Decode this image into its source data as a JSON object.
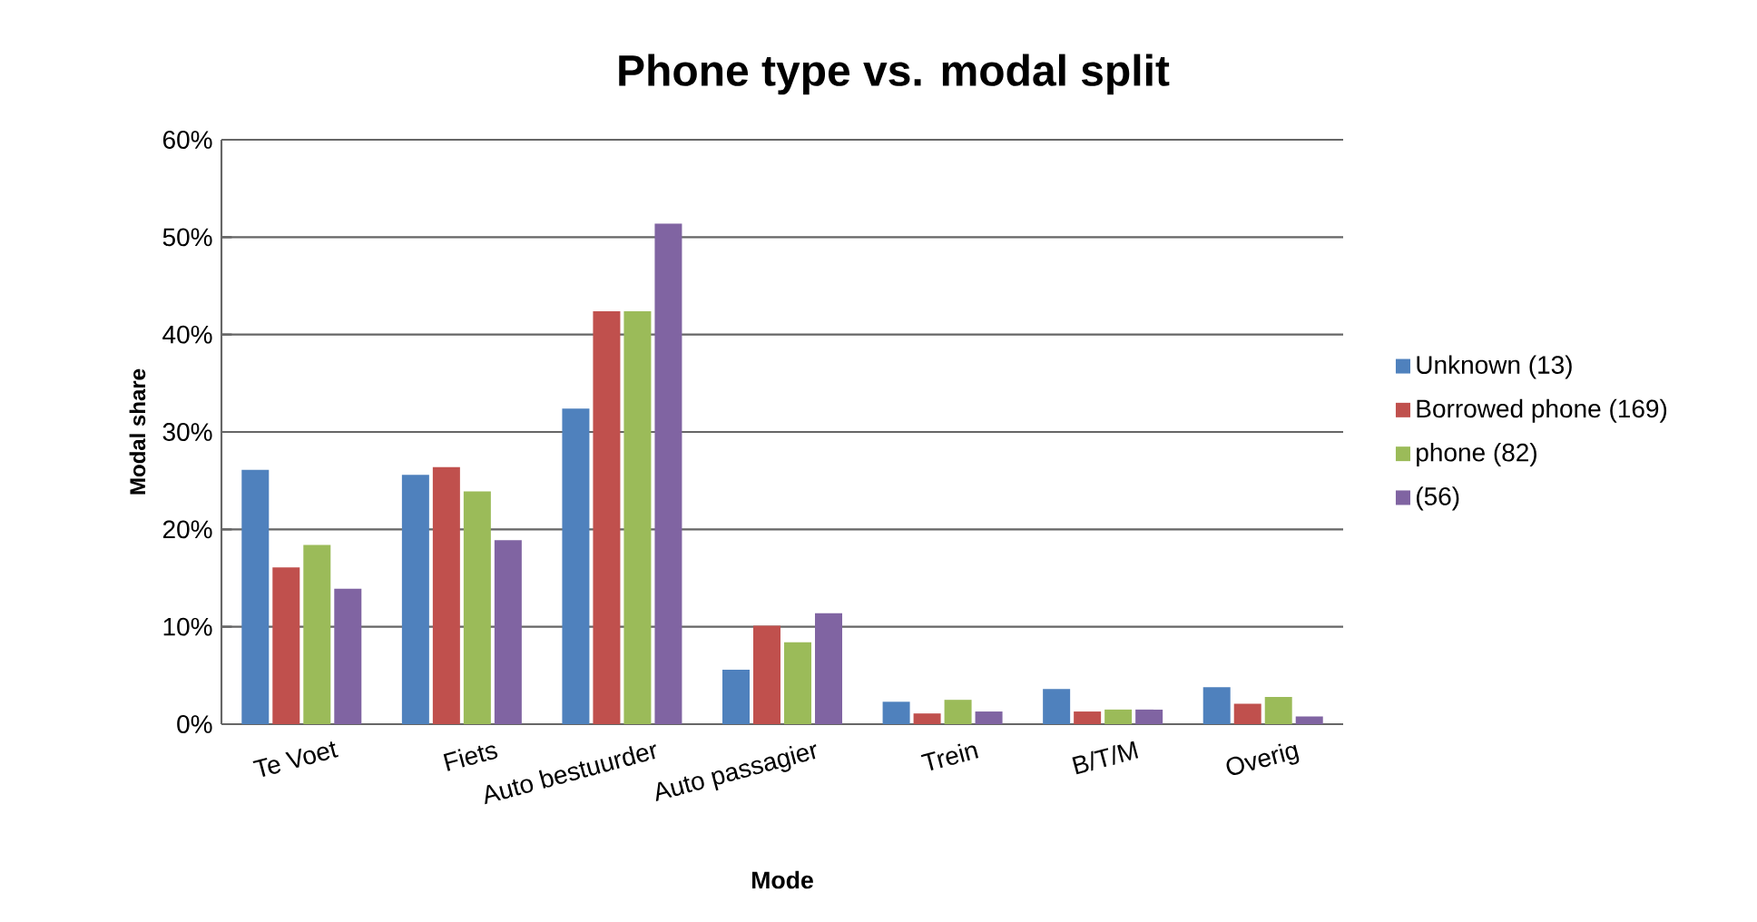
{
  "chart_data": {
    "type": "bar",
    "title": "Phone type vs. modal split",
    "xlabel": "Mode",
    "ylabel": "Modal share",
    "categories": [
      "Te Voet",
      "Fiets",
      "Auto bestuurder",
      "Auto passagier",
      "Trein",
      "B/T/M",
      "Overig"
    ],
    "series": [
      {
        "name": "Unknown (13)",
        "color": "#4f81bd",
        "values": [
          26.1,
          25.6,
          32.4,
          5.6,
          2.3,
          3.6,
          3.8
        ]
      },
      {
        "name": "Borrowed phone (169)",
        "color": "#c0504d",
        "values": [
          16.1,
          26.4,
          42.4,
          10.1,
          1.1,
          1.3,
          2.1
        ]
      },
      {
        "name": "phone (82)",
        "color": "#9bbb59",
        "values": [
          18.4,
          23.9,
          42.4,
          8.4,
          2.5,
          1.5,
          2.8
        ]
      },
      {
        "name": "(56)",
        "color": "#8064a2",
        "values": [
          13.9,
          18.9,
          51.4,
          11.4,
          1.3,
          1.5,
          0.8
        ]
      }
    ],
    "ylim": [
      0,
      60
    ],
    "yticks": [
      {
        "value": 0,
        "label": "0%"
      },
      {
        "value": 10,
        "label": "10%"
      },
      {
        "value": 20,
        "label": "20%"
      },
      {
        "value": 30,
        "label": "30%"
      },
      {
        "value": 40,
        "label": "40%"
      },
      {
        "value": 50,
        "label": "50%"
      },
      {
        "value": 60,
        "label": "60%"
      }
    ],
    "grid": "y",
    "legend": "right"
  }
}
